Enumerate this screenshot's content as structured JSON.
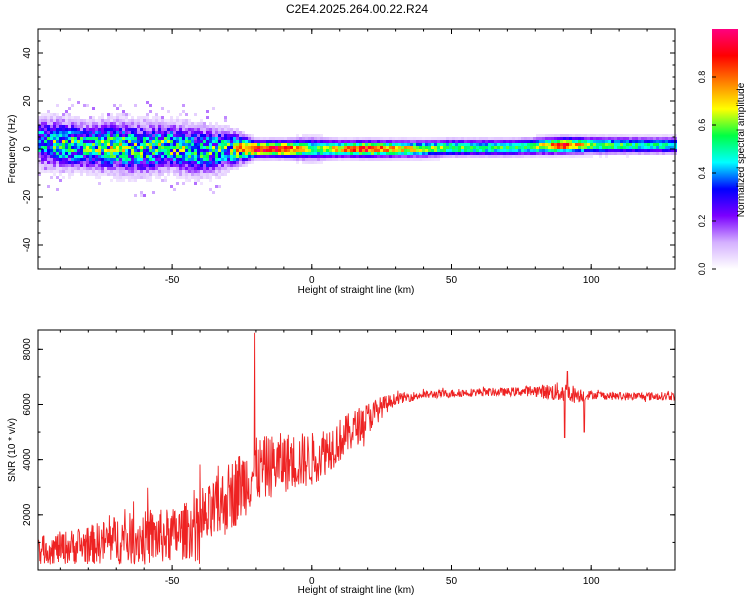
{
  "title": "C2E4.2025.264.00.22.R24",
  "chart_data": [
    {
      "type": "heatmap",
      "xlabel": "Height of straight line (km)",
      "ylabel": "Frequency (Hz)",
      "xlim": [
        -98,
        130
      ],
      "ylim": [
        -50,
        50
      ],
      "xticks": [
        -50,
        0,
        50,
        100
      ],
      "yticks": [
        -40,
        -20,
        0,
        20,
        40
      ],
      "colorbar": {
        "label": "Normalized spectral amplitude",
        "range": [
          0,
          1
        ],
        "ticks": [
          "0.0",
          "0.2",
          "0.4",
          "0.6",
          "0.8"
        ],
        "colormap": [
          "#ffffff",
          "#d4b0ff",
          "#7b00ff",
          "#0000ff",
          "#00ffff",
          "#00ff44",
          "#ffff00",
          "#ff8000",
          "#ff0000",
          "#ff0080"
        ]
      },
      "ridge": {
        "x": [
          -98,
          -90,
          -80,
          -70,
          -60,
          -50,
          -40,
          -30,
          -20,
          -10,
          0,
          10,
          20,
          30,
          40,
          50,
          60,
          70,
          80,
          90,
          100,
          110,
          120,
          130
        ],
        "y": [
          3,
          2,
          1,
          1,
          0,
          1,
          -1,
          0,
          0,
          0,
          0,
          0,
          0,
          0,
          0,
          0.5,
          0.5,
          0.5,
          1,
          1.5,
          1.5,
          1.5,
          1.5,
          1.5
        ],
        "amplitude": [
          0.45,
          0.5,
          0.5,
          0.55,
          0.5,
          0.55,
          0.45,
          0.5,
          0.95,
          0.95,
          0.55,
          0.75,
          0.9,
          0.75,
          0.65,
          0.6,
          0.55,
          0.55,
          0.6,
          0.9,
          0.6,
          0.55,
          0.5,
          0.5
        ],
        "spread": [
          8,
          9,
          8,
          9,
          9,
          8,
          9,
          7,
          3,
          3,
          4,
          3,
          3,
          3,
          3,
          3,
          3,
          3,
          3,
          3,
          3,
          3,
          3,
          3
        ]
      }
    },
    {
      "type": "line",
      "xlabel": "Height of straight line (km)",
      "ylabel": "SNR (10 * v/v)",
      "xlim": [
        -98,
        130
      ],
      "ylim": [
        0,
        8700
      ],
      "xticks": [
        -50,
        0,
        50,
        100
      ],
      "yticks": [
        2000,
        4000,
        6000,
        8000
      ],
      "color": "#ee2222",
      "envelope": {
        "x": [
          -98,
          -90,
          -80,
          -70,
          -60,
          -50,
          -40,
          -35,
          -30,
          -25,
          -20,
          -10,
          0,
          10,
          20,
          25,
          30,
          40,
          50,
          60,
          70,
          80,
          85,
          90,
          95,
          100,
          110,
          120,
          130
        ],
        "center": [
          700,
          800,
          900,
          1100,
          1150,
          1250,
          1600,
          2100,
          2600,
          3100,
          3600,
          3900,
          4000,
          4700,
          5500,
          5900,
          6200,
          6350,
          6400,
          6450,
          6450,
          6500,
          6450,
          6450,
          6350,
          6350,
          6300,
          6300,
          6300
        ],
        "noise": [
          500,
          600,
          700,
          900,
          1000,
          1000,
          1100,
          1200,
          1300,
          1300,
          1200,
          1100,
          1000,
          800,
          600,
          400,
          200,
          150,
          150,
          150,
          150,
          200,
          300,
          400,
          300,
          150,
          150,
          150,
          150
        ]
      },
      "spikes": [
        {
          "x": -20.5,
          "y": 8600
        },
        {
          "x": 90.5,
          "y": 4800
        },
        {
          "x": 91.5,
          "y": 7200
        },
        {
          "x": 97.5,
          "y": 5000
        }
      ]
    }
  ]
}
